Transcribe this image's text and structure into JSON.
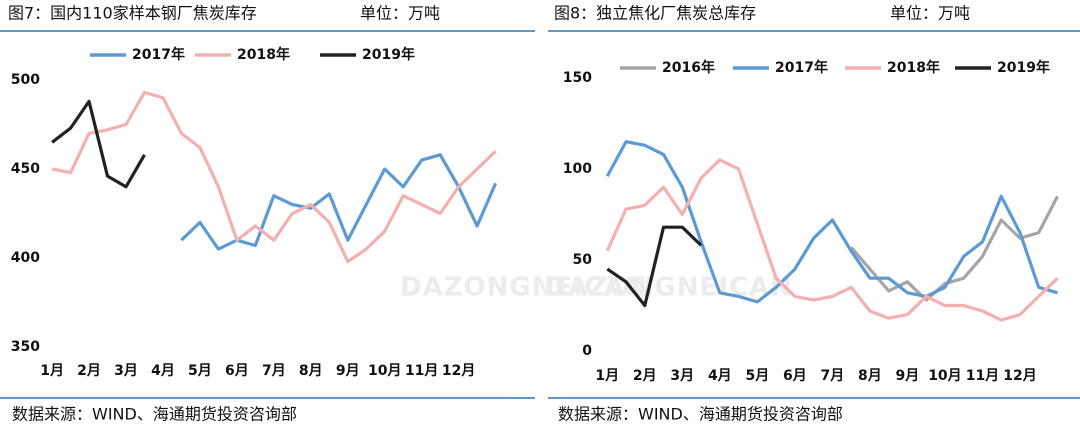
{
  "chart_data": [
    {
      "type": "line",
      "title": "图7：国内110家样本钢厂焦炭库存",
      "unit": "单位：万吨",
      "source": "数据来源：WIND、海通期货投资咨询部",
      "watermark": "DAZONGNEICAN",
      "x": [
        1,
        1.5,
        2,
        2.5,
        3,
        3.5,
        4,
        4.5,
        5,
        5.5,
        6,
        6.5,
        7,
        7.5,
        8,
        8.5,
        9,
        9.5,
        10,
        10.5,
        11,
        11.5,
        12,
        12.5,
        13
      ],
      "xlim": [
        0.7,
        13.2
      ],
      "ylim": [
        350,
        500
      ],
      "xticks": [
        {
          "value": 1,
          "label": "1月"
        },
        {
          "value": 2,
          "label": "2月"
        },
        {
          "value": 3,
          "label": "3月"
        },
        {
          "value": 4,
          "label": "4月"
        },
        {
          "value": 5,
          "label": "5月"
        },
        {
          "value": 6,
          "label": "6月"
        },
        {
          "value": 7,
          "label": "7月"
        },
        {
          "value": 8,
          "label": "8月"
        },
        {
          "value": 9,
          "label": "9月"
        },
        {
          "value": 10,
          "label": "10月"
        },
        {
          "value": 11,
          "label": "11月"
        },
        {
          "value": 12,
          "label": "12月"
        }
      ],
      "yticks": [
        350,
        400,
        450,
        500
      ],
      "series": [
        {
          "name": "2017年",
          "color": "#5b9bd5",
          "values": [
            null,
            null,
            null,
            null,
            null,
            null,
            null,
            410,
            420,
            405,
            410,
            407,
            435,
            430,
            428,
            436,
            410,
            430,
            450,
            440,
            455,
            458,
            440,
            418,
            442
          ]
        },
        {
          "name": "2018年",
          "color": "#f4b0ae",
          "values": [
            450,
            448,
            470,
            472,
            475,
            493,
            490,
            470,
            462,
            440,
            410,
            418,
            410,
            425,
            430,
            420,
            398,
            405,
            415,
            435,
            430,
            425,
            440,
            450,
            460
          ]
        },
        {
          "name": "2019年",
          "color": "#222222",
          "values": [
            465,
            473,
            488,
            446,
            440,
            458,
            null,
            null,
            null,
            null,
            null,
            null,
            null,
            null,
            null,
            null,
            null,
            null,
            null,
            null,
            null,
            null,
            null,
            null,
            null
          ]
        }
      ]
    },
    {
      "type": "line",
      "title": "图8：独立焦化厂焦炭总库存",
      "unit": "单位：万吨",
      "source": "数据来源：WIND、海通期货投资咨询部",
      "watermark": "DAZONGNEICAN",
      "x": [
        1,
        1.5,
        2,
        2.5,
        3,
        3.5,
        4,
        4.5,
        5,
        5.5,
        6,
        6.5,
        7,
        7.5,
        8,
        8.5,
        9,
        9.5,
        10,
        10.5,
        11,
        11.5,
        12,
        12.5,
        13
      ],
      "xlim": [
        0.7,
        13.2
      ],
      "ylim": [
        0,
        150
      ],
      "xticks": [
        {
          "value": 1,
          "label": "1月"
        },
        {
          "value": 2,
          "label": "2月"
        },
        {
          "value": 3,
          "label": "3月"
        },
        {
          "value": 4,
          "label": "4月"
        },
        {
          "value": 5,
          "label": "5月"
        },
        {
          "value": 6,
          "label": "6月"
        },
        {
          "value": 7,
          "label": "7月"
        },
        {
          "value": 8,
          "label": "8月"
        },
        {
          "value": 9,
          "label": "9月"
        },
        {
          "value": 10,
          "label": "10月"
        },
        {
          "value": 11,
          "label": "11月"
        },
        {
          "value": 12,
          "label": "12月"
        }
      ],
      "yticks": [
        0,
        50,
        100,
        150
      ],
      "series": [
        {
          "name": "2016年",
          "color": "#a5a5a5",
          "values": [
            null,
            null,
            null,
            null,
            null,
            null,
            null,
            null,
            null,
            null,
            null,
            null,
            null,
            57,
            45,
            33,
            38,
            28,
            37,
            40,
            52,
            72,
            62,
            65,
            85
          ]
        },
        {
          "name": "2017年",
          "color": "#5b9bd5",
          "values": [
            96,
            115,
            113,
            108,
            90,
            60,
            32,
            30,
            27,
            35,
            45,
            62,
            72,
            55,
            40,
            40,
            32,
            30,
            35,
            52,
            60,
            85,
            65,
            35,
            32
          ]
        },
        {
          "name": "2018年",
          "color": "#f4b0ae",
          "values": [
            55,
            78,
            80,
            90,
            75,
            95,
            105,
            100,
            70,
            40,
            30,
            28,
            30,
            35,
            22,
            18,
            20,
            30,
            25,
            25,
            22,
            17,
            20,
            30,
            40
          ]
        },
        {
          "name": "2019年",
          "color": "#222222",
          "values": [
            45,
            38,
            25,
            68,
            68,
            58,
            null,
            null,
            null,
            null,
            null,
            null,
            null,
            null,
            null,
            null,
            null,
            null,
            null,
            null,
            null,
            null,
            null,
            null,
            null
          ]
        }
      ]
    }
  ]
}
